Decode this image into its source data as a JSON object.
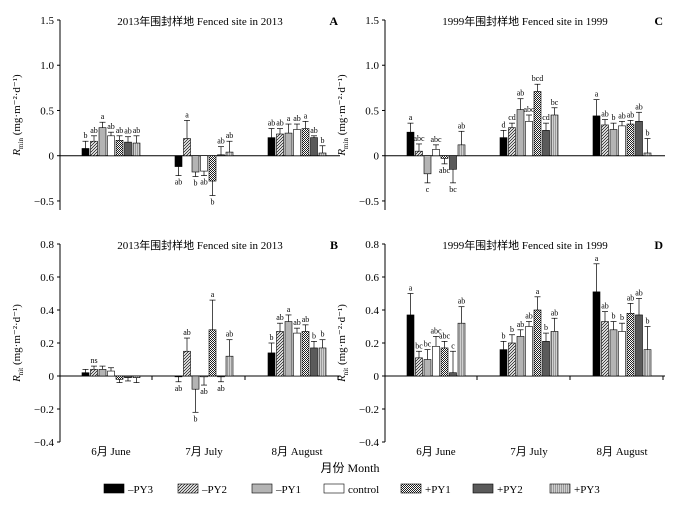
{
  "figure": {
    "xlabel": "月份 Month",
    "categories": [
      "6月 June",
      "7月 July",
      "8月 August"
    ],
    "legend": [
      "–PY3",
      "–PY2",
      "–PY1",
      "control",
      "+PY1",
      "+PY2",
      "+PY3"
    ]
  },
  "chart_data": [
    {
      "type": "bar",
      "panel": "A",
      "title": "2013年围封样地 Fenced site in 2013",
      "ylabel_main": "R",
      "ylabel_sub": "min",
      "ylabel_unit": " (mg·m⁻²·d⁻¹)",
      "ylim": [
        -0.6,
        1.5
      ],
      "yticks": [
        -0.5,
        0,
        0.5,
        1.0,
        1.5
      ],
      "ytick_labels": [
        "−0.5",
        "0",
        "0.5",
        "1.0",
        "1.5"
      ],
      "categories": [
        "6月 June",
        "7月 July",
        "8月 August"
      ],
      "series": [
        {
          "name": "–PY3",
          "values": [
            0.08,
            -0.12,
            0.2
          ],
          "errors": [
            0.08,
            0.1,
            0.1
          ],
          "labels": [
            "b",
            "ab",
            "ab"
          ]
        },
        {
          "name": "–PY2",
          "values": [
            0.16,
            0.19,
            0.24
          ],
          "errors": [
            0.06,
            0.2,
            0.06
          ],
          "labels": [
            "ab",
            "a",
            "ab"
          ]
        },
        {
          "name": "–PY1",
          "values": [
            0.31,
            -0.18,
            0.25
          ],
          "errors": [
            0.06,
            0.05,
            0.1
          ],
          "labels": [
            "a",
            "b",
            "a"
          ]
        },
        {
          "name": "control",
          "values": [
            0.22,
            -0.17,
            0.29
          ],
          "errors": [
            0.04,
            0.05,
            0.06
          ],
          "labels": [
            "ab",
            "ab",
            "ab"
          ]
        },
        {
          "name": "+PY1",
          "values": [
            0.17,
            -0.28,
            0.3
          ],
          "errors": [
            0.05,
            0.16,
            0.08
          ],
          "labels": [
            "ab",
            "b",
            "a"
          ]
        },
        {
          "name": "+PY2",
          "values": [
            0.15,
            0.01,
            0.2
          ],
          "errors": [
            0.06,
            0.09,
            0.02
          ],
          "labels": [
            "ab",
            "ab",
            "ab"
          ]
        },
        {
          "name": "+PY3",
          "values": [
            0.14,
            0.04,
            0.03
          ],
          "errors": [
            0.08,
            0.12,
            0.08
          ],
          "labels": [
            "ab",
            "ab",
            "b"
          ]
        }
      ]
    },
    {
      "type": "bar",
      "panel": "C",
      "title": "1999年围封样地 Fenced site in 1999",
      "ylabel_main": "R",
      "ylabel_sub": "min",
      "ylabel_unit": " (mg·m⁻²·d⁻¹)",
      "ylim": [
        -0.6,
        1.5
      ],
      "yticks": [
        -0.5,
        0,
        0.5,
        1.0,
        1.5
      ],
      "ytick_labels": [
        "−0.5",
        "0",
        "0.5",
        "1.0",
        "1.5"
      ],
      "categories": [
        "6月 June",
        "7月 July",
        "8月 August"
      ],
      "series": [
        {
          "name": "–PY3",
          "values": [
            0.26,
            0.2,
            0.44
          ],
          "errors": [
            0.1,
            0.08,
            0.18
          ],
          "labels": [
            "a",
            "d",
            "a"
          ]
        },
        {
          "name": "–PY2",
          "values": [
            0.05,
            0.31,
            0.34
          ],
          "errors": [
            0.08,
            0.05,
            0.06
          ],
          "labels": [
            "abc",
            "cd",
            "ab"
          ]
        },
        {
          "name": "–PY1",
          "values": [
            -0.2,
            0.51,
            0.29
          ],
          "errors": [
            0.1,
            0.12,
            0.07
          ],
          "labels": [
            "c",
            "ab",
            "b"
          ]
        },
        {
          "name": "control",
          "values": [
            0.07,
            0.38,
            0.33
          ],
          "errors": [
            0.05,
            0.07,
            0.05
          ],
          "labels": [
            "abc",
            "abc",
            "ab"
          ]
        },
        {
          "name": "+PY1",
          "values": [
            -0.03,
            0.71,
            0.35
          ],
          "errors": [
            0.06,
            0.08,
            0.04
          ],
          "labels": [
            "abc",
            "bcd",
            "ab"
          ]
        },
        {
          "name": "+PY2",
          "values": [
            -0.15,
            0.28,
            0.38
          ],
          "errors": [
            0.15,
            0.08,
            0.1
          ],
          "labels": [
            "bc",
            "cd",
            "ab"
          ]
        },
        {
          "name": "+PY3",
          "values": [
            0.12,
            0.45,
            0.03
          ],
          "errors": [
            0.15,
            0.08,
            0.16
          ],
          "labels": [
            "ab",
            "bc",
            "b"
          ]
        }
      ]
    },
    {
      "type": "bar",
      "panel": "B",
      "title": "2013年围封样地 Fenced site in 2013",
      "ylabel_main": "R",
      "ylabel_sub": "nit",
      "ylabel_unit": " (mg·m⁻²·d⁻¹)",
      "ylim": [
        -0.4,
        0.8
      ],
      "yticks": [
        -0.4,
        -0.2,
        0,
        0.2,
        0.4,
        0.6,
        0.8
      ],
      "ytick_labels": [
        "−0.4",
        "−0.2",
        "0",
        "0.2",
        "0.4",
        "0.6",
        "0.8"
      ],
      "categories": [
        "6月 June",
        "7月 July",
        "8月 August"
      ],
      "series": [
        {
          "name": "–PY3",
          "values": [
            0.02,
            -0.005,
            0.14
          ],
          "errors": [
            0.02,
            0.03,
            0.06
          ],
          "labels": [
            "",
            "ab",
            "b"
          ]
        },
        {
          "name": "–PY2",
          "values": [
            0.04,
            0.15,
            0.27
          ],
          "errors": [
            0.02,
            0.08,
            0.05
          ],
          "labels": [
            "ns",
            "ab",
            "ab"
          ]
        },
        {
          "name": "–PY1",
          "values": [
            0.04,
            -0.08,
            0.33
          ],
          "errors": [
            0.02,
            0.14,
            0.04
          ],
          "labels": [
            "",
            "b",
            "a"
          ]
        },
        {
          "name": "control",
          "values": [
            0.03,
            -0.005,
            0.26
          ],
          "errors": [
            0.02,
            0.05,
            0.03
          ],
          "labels": [
            "",
            "ab",
            "ab"
          ]
        },
        {
          "name": "+PY1",
          "values": [
            -0.02,
            0.28,
            0.27
          ],
          "errors": [
            0.02,
            0.18,
            0.04
          ],
          "labels": [
            "",
            "a",
            "ab"
          ]
        },
        {
          "name": "+PY2",
          "values": [
            -0.01,
            -0.005,
            0.17
          ],
          "errors": [
            0.02,
            0.03,
            0.04
          ],
          "labels": [
            "",
            "ab",
            "b"
          ]
        },
        {
          "name": "+PY3",
          "values": [
            -0.01,
            0.12,
            0.17
          ],
          "errors": [
            0.03,
            0.1,
            0.05
          ],
          "labels": [
            "",
            "ab",
            "b"
          ]
        }
      ]
    },
    {
      "type": "bar",
      "panel": "D",
      "title": "1999年围封样地 Fenced site in 1999",
      "ylabel_main": "R",
      "ylabel_sub": "nit",
      "ylabel_unit": " (mg·m⁻²·d⁻¹)",
      "ylim": [
        -0.4,
        0.8
      ],
      "yticks": [
        -0.4,
        -0.2,
        0,
        0.2,
        0.4,
        0.6,
        0.8
      ],
      "ytick_labels": [
        "−0.4",
        "−0.2",
        "0",
        "0.2",
        "0.4",
        "0.6",
        "0.8"
      ],
      "categories": [
        "6月 June",
        "7月 July",
        "8月 August"
      ],
      "series": [
        {
          "name": "–PY3",
          "values": [
            0.37,
            0.16,
            0.51
          ],
          "errors": [
            0.13,
            0.05,
            0.17
          ],
          "labels": [
            "a",
            "b",
            "a"
          ]
        },
        {
          "name": "–PY2",
          "values": [
            0.11,
            0.2,
            0.33
          ],
          "errors": [
            0.04,
            0.05,
            0.06
          ],
          "labels": [
            "bc",
            "b",
            "ab"
          ]
        },
        {
          "name": "–PY1",
          "values": [
            0.1,
            0.24,
            0.28
          ],
          "errors": [
            0.06,
            0.04,
            0.05
          ],
          "labels": [
            "bc",
            "ab",
            "b"
          ]
        },
        {
          "name": "control",
          "values": [
            0.18,
            0.3,
            0.27
          ],
          "errors": [
            0.06,
            0.03,
            0.05
          ],
          "labels": [
            "abc",
            "ab",
            "b"
          ]
        },
        {
          "name": "+PY1",
          "values": [
            0.17,
            0.4,
            0.38
          ],
          "errors": [
            0.04,
            0.08,
            0.06
          ],
          "labels": [
            "abc",
            "a",
            "ab"
          ]
        },
        {
          "name": "+PY2",
          "values": [
            0.02,
            0.21,
            0.37
          ],
          "errors": [
            0.13,
            0.05,
            0.1
          ],
          "labels": [
            "c",
            "b",
            "ab"
          ]
        },
        {
          "name": "+PY3",
          "values": [
            0.32,
            0.27,
            0.16
          ],
          "errors": [
            0.1,
            0.08,
            0.14
          ],
          "labels": [
            "ab",
            "ab",
            "b"
          ]
        }
      ]
    }
  ]
}
